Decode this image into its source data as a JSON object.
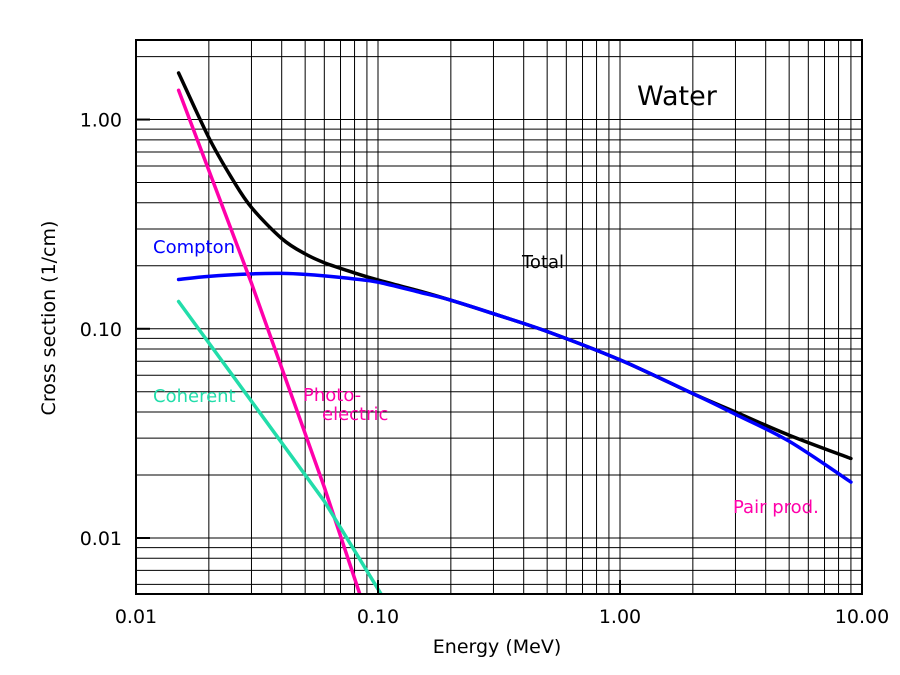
{
  "chart_data": {
    "type": "line",
    "title": "Water",
    "xlabel": "Energy (MeV)",
    "ylabel": "Cross section (1/cm)",
    "x_scale": "log",
    "y_scale": "log",
    "xlim": [
      0.01,
      10.0
    ],
    "ylim": [
      0.0054,
      2.4
    ],
    "grid": true,
    "x_ticks": [
      {
        "value": 0.01,
        "label": "0.01"
      },
      {
        "value": 0.1,
        "label": "0.10"
      },
      {
        "value": 1.0,
        "label": "1.00"
      },
      {
        "value": 10.0,
        "label": "10.00"
      }
    ],
    "y_ticks": [
      {
        "value": 0.01,
        "label": "0.01"
      },
      {
        "value": 0.1,
        "label": "0.10"
      },
      {
        "value": 1.0,
        "label": "1.00"
      }
    ],
    "series": [
      {
        "name": "Total",
        "color": "#000000",
        "x": [
          0.015,
          0.02,
          0.025,
          0.03,
          0.04,
          0.05,
          0.06,
          0.08,
          0.1,
          0.15,
          0.2,
          0.3,
          0.5,
          1.0,
          2.0,
          3.0,
          5.0,
          9.0
        ],
        "y": [
          1.67,
          0.82,
          0.52,
          0.38,
          0.27,
          0.228,
          0.207,
          0.185,
          0.171,
          0.151,
          0.137,
          0.118,
          0.097,
          0.071,
          0.049,
          0.04,
          0.031,
          0.024
        ]
      },
      {
        "name": "Compton",
        "color": "#0000ff",
        "x": [
          0.015,
          0.02,
          0.03,
          0.04,
          0.05,
          0.06,
          0.08,
          0.1,
          0.15,
          0.2,
          0.3,
          0.5,
          1.0,
          2.0,
          3.0,
          5.0,
          9.0
        ],
        "y": [
          0.172,
          0.178,
          0.183,
          0.184,
          0.182,
          0.179,
          0.173,
          0.167,
          0.149,
          0.137,
          0.118,
          0.097,
          0.071,
          0.049,
          0.039,
          0.029,
          0.0185
        ]
      },
      {
        "name": "Photo-electric",
        "color": "#ff00aa",
        "x": [
          0.015,
          0.03,
          0.06,
          0.085
        ],
        "y": [
          1.38,
          0.165,
          0.0175,
          0.0052
        ]
      },
      {
        "name": "Coherent",
        "color": "#22ddaa",
        "x": [
          0.015,
          0.03,
          0.06,
          0.105
        ],
        "y": [
          0.135,
          0.045,
          0.015,
          0.0052
        ]
      }
    ],
    "annotations": [
      {
        "text": "Total",
        "color": "#000000"
      },
      {
        "text": "Compton",
        "color": "#0000ff"
      },
      {
        "text": "Coherent",
        "color": "#22ddaa"
      },
      {
        "text": "Photo-",
        "color": "#ff00aa"
      },
      {
        "text": "electric",
        "color": "#ff00aa"
      },
      {
        "text": "Pair prod.",
        "color": "#ff00aa"
      }
    ]
  }
}
